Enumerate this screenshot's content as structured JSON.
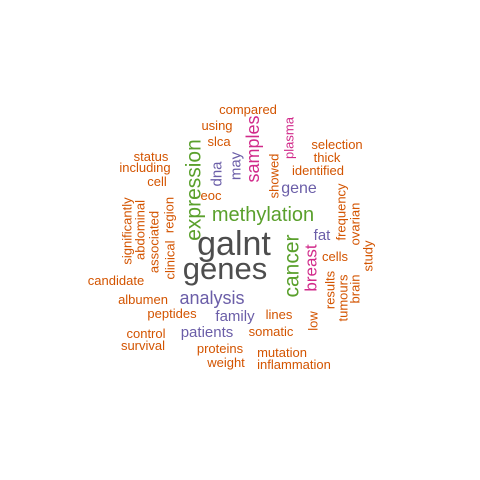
{
  "colors": {
    "gray": "#4d4d4d",
    "green": "#5aa02c",
    "purple": "#6b5ea8",
    "magenta": "#d12a8a",
    "orange": "#d35400"
  },
  "words": [
    {
      "text": "galnt",
      "color": "gray"
    },
    {
      "text": "genes",
      "color": "gray"
    },
    {
      "text": "methylation",
      "color": "green"
    },
    {
      "text": "expression",
      "color": "green"
    },
    {
      "text": "cancer",
      "color": "green"
    },
    {
      "text": "samples",
      "color": "magenta"
    },
    {
      "text": "breast",
      "color": "magenta"
    },
    {
      "text": "plasma",
      "color": "magenta"
    },
    {
      "text": "analysis",
      "color": "purple"
    },
    {
      "text": "gene",
      "color": "purple"
    },
    {
      "text": "family",
      "color": "purple"
    },
    {
      "text": "patients",
      "color": "purple"
    },
    {
      "text": "fat",
      "color": "purple"
    },
    {
      "text": "dna",
      "color": "purple"
    },
    {
      "text": "may",
      "color": "purple"
    },
    {
      "text": "compared",
      "color": "orange"
    },
    {
      "text": "using",
      "color": "orange"
    },
    {
      "text": "slca",
      "color": "orange"
    },
    {
      "text": "selection",
      "color": "orange"
    },
    {
      "text": "thick",
      "color": "orange"
    },
    {
      "text": "identified",
      "color": "orange"
    },
    {
      "text": "showed",
      "color": "orange"
    },
    {
      "text": "status",
      "color": "orange"
    },
    {
      "text": "including",
      "color": "orange"
    },
    {
      "text": "cell",
      "color": "orange"
    },
    {
      "text": "eoc",
      "color": "orange"
    },
    {
      "text": "frequency",
      "color": "orange"
    },
    {
      "text": "ovarian",
      "color": "orange"
    },
    {
      "text": "study",
      "color": "orange"
    },
    {
      "text": "cells",
      "color": "orange"
    },
    {
      "text": "brain",
      "color": "orange"
    },
    {
      "text": "tumours",
      "color": "orange"
    },
    {
      "text": "results",
      "color": "orange"
    },
    {
      "text": "low",
      "color": "orange"
    },
    {
      "text": "region",
      "color": "orange"
    },
    {
      "text": "clinical",
      "color": "orange"
    },
    {
      "text": "associated",
      "color": "orange"
    },
    {
      "text": "abdominal",
      "color": "orange"
    },
    {
      "text": "significantly",
      "color": "orange"
    },
    {
      "text": "candidate",
      "color": "orange"
    },
    {
      "text": "albumen",
      "color": "orange"
    },
    {
      "text": "peptides",
      "color": "orange"
    },
    {
      "text": "lines",
      "color": "orange"
    },
    {
      "text": "somatic",
      "color": "orange"
    },
    {
      "text": "control",
      "color": "orange"
    },
    {
      "text": "survival",
      "color": "orange"
    },
    {
      "text": "proteins",
      "color": "orange"
    },
    {
      "text": "mutation",
      "color": "orange"
    },
    {
      "text": "weight",
      "color": "orange"
    },
    {
      "text": "inflammation",
      "color": "orange"
    }
  ]
}
